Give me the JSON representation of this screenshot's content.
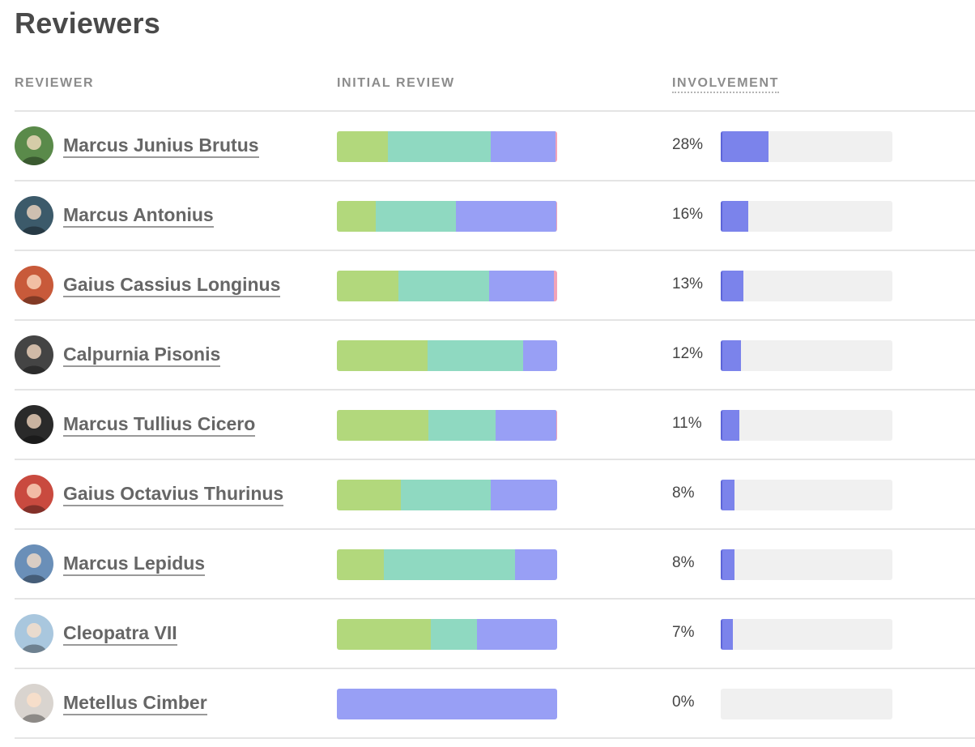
{
  "page": {
    "title": "Reviewers"
  },
  "columns": {
    "reviewer": "REVIEWER",
    "initial_review": "INITIAL REVIEW",
    "involvement": "INVOLVEMENT"
  },
  "colors": {
    "green": "#b2d87c",
    "teal": "#8fd9c1",
    "purple": "#989ff5",
    "pink": "#f2a3b8",
    "involvement_fill": "#7b83eb",
    "track": "#f0f0f0"
  },
  "reviewers": [
    {
      "name": "Marcus Junius Brutus",
      "avatar_color": "#5a8a4a",
      "initial_review": [
        23,
        47,
        29.3,
        0.7
      ],
      "involvement_label": "28%",
      "involvement_value": 28
    },
    {
      "name": "Marcus Antonius",
      "avatar_color": "#3c5a6a",
      "initial_review": [
        17.5,
        36.5,
        45.5,
        0.5
      ],
      "involvement_label": "16%",
      "involvement_value": 16
    },
    {
      "name": "Gaius Cassius Longinus",
      "avatar_color": "#c85a3a",
      "initial_review": [
        28,
        41,
        29.5,
        1.5
      ],
      "involvement_label": "13%",
      "involvement_value": 13
    },
    {
      "name": "Calpurnia Pisonis",
      "avatar_color": "#444444",
      "initial_review": [
        41,
        43.5,
        15.5,
        0
      ],
      "involvement_label": "12%",
      "involvement_value": 12
    },
    {
      "name": "Marcus Tullius Cicero",
      "avatar_color": "#2a2a2a",
      "initial_review": [
        41.5,
        30.5,
        27.5,
        0.5
      ],
      "involvement_label": "11%",
      "involvement_value": 11
    },
    {
      "name": "Gaius Octavius Thurinus",
      "avatar_color": "#c94a3f",
      "initial_review": [
        29,
        41,
        30,
        0
      ],
      "involvement_label": "8%",
      "involvement_value": 8
    },
    {
      "name": "Marcus Lepidus",
      "avatar_color": "#6a8fb8",
      "initial_review": [
        21.5,
        59.5,
        19,
        0
      ],
      "involvement_label": "8%",
      "involvement_value": 8
    },
    {
      "name": "Cleopatra VII",
      "avatar_color": "#a9c7de",
      "initial_review": [
        42.5,
        21,
        36.5,
        0
      ],
      "involvement_label": "7%",
      "involvement_value": 7
    },
    {
      "name": "Metellus Cimber",
      "avatar_color": "#d9d4cf",
      "initial_review": [
        0,
        0,
        100,
        0
      ],
      "involvement_label": "0%",
      "involvement_value": 0
    }
  ]
}
